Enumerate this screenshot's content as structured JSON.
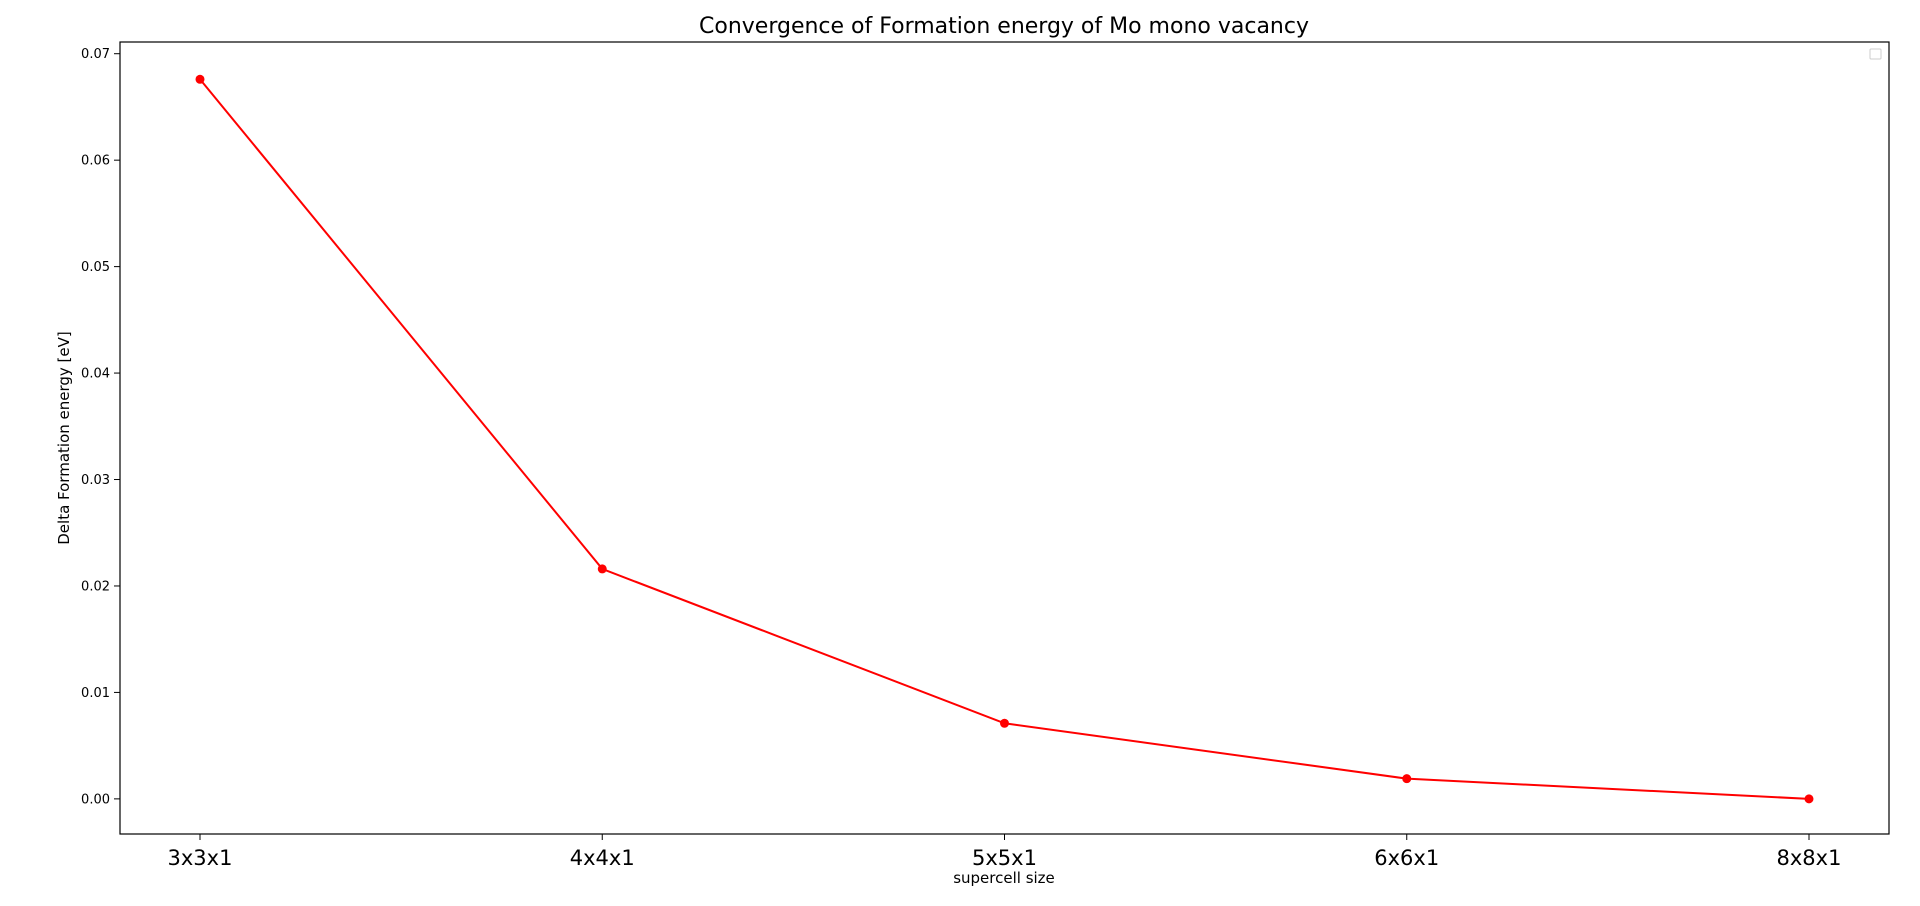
{
  "chart_data": {
    "type": "line",
    "title": "Convergence of Formation energy of Mo mono vacancy",
    "xlabel": "supercell size",
    "ylabel": "Delta Formation energy [eV]",
    "categories": [
      "3x3x1",
      "4x4x1",
      "5x5x1",
      "6x6x1",
      "8x8x1"
    ],
    "series": [
      {
        "values": [
          0.0676,
          0.0216,
          0.0071,
          0.0019,
          0.0
        ],
        "color": "#ff0000",
        "marker": "circle"
      }
    ],
    "ylim": [
      -0.0033,
      0.0711
    ],
    "yticks": [
      0.0,
      0.01,
      0.02,
      0.03,
      0.04,
      0.05,
      0.06,
      0.07
    ],
    "ytick_labels": [
      "0.00",
      "0.01",
      "0.02",
      "0.03",
      "0.04",
      "0.05",
      "0.06",
      "0.07"
    ],
    "grid": false,
    "legend": {
      "position": "top-right",
      "entries": []
    }
  }
}
